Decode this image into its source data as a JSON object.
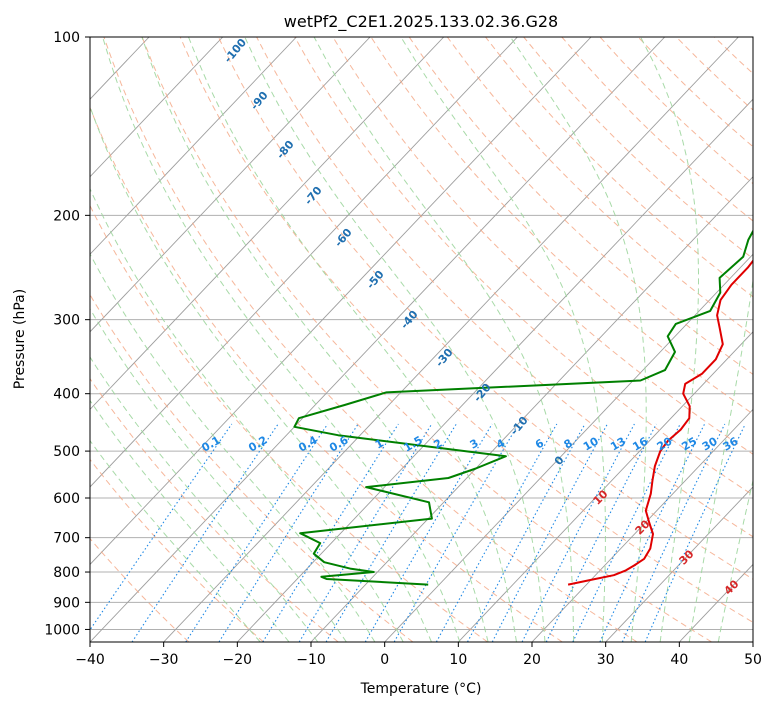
{
  "chart_data": {
    "type": "line",
    "subtype": "skew-T log-P diagram",
    "title": "wetPf2_C2E1.2025.133.02.36.G28",
    "xlabel": "Temperature (°C)",
    "ylabel": "Pressure (hPa)",
    "xlim": [
      -40,
      50
    ],
    "ylim": [
      1050,
      100
    ],
    "y_scale": "log",
    "x_ticks": [
      -40,
      -30,
      -20,
      -10,
      0,
      10,
      20,
      30,
      40,
      50
    ],
    "y_ticks": [
      100,
      200,
      300,
      400,
      500,
      600,
      700,
      800,
      900,
      1000
    ],
    "grid": true,
    "series": [
      {
        "role": "temperature",
        "color": "#e00000",
        "points": [
          [
            17.5,
            840
          ],
          [
            20,
            825
          ],
          [
            22.5,
            810
          ],
          [
            23.5,
            795
          ],
          [
            24,
            780
          ],
          [
            24.5,
            760
          ],
          [
            24,
            730
          ],
          [
            22.5,
            690
          ],
          [
            20.5,
            660
          ],
          [
            18.5,
            630
          ],
          [
            17,
            590
          ],
          [
            15.5,
            560
          ],
          [
            14,
            530
          ],
          [
            12.8,
            500
          ],
          [
            12.5,
            480
          ],
          [
            12.8,
            460
          ],
          [
            12.5,
            440
          ],
          [
            11,
            420
          ],
          [
            8.5,
            400
          ],
          [
            7.5,
            385
          ],
          [
            8.5,
            370
          ],
          [
            8.5,
            350
          ],
          [
            7.5,
            330
          ],
          [
            5,
            310
          ],
          [
            3,
            295
          ],
          [
            1.5,
            278
          ],
          [
            1,
            262
          ],
          [
            1,
            245
          ],
          [
            0.5,
            225
          ],
          [
            -1.5,
            205
          ],
          [
            -3.5,
            190
          ],
          [
            -5,
            175
          ],
          [
            -6.5,
            162
          ],
          [
            -7,
            150
          ],
          [
            -6.5,
            138
          ],
          [
            -5.5,
            128
          ],
          [
            -4.5,
            118
          ],
          [
            -2.5,
            108
          ],
          [
            -1.3,
            100
          ]
        ]
      },
      {
        "role": "dewpoint",
        "color": "#008000",
        "points": [
          [
            -1.5,
            840
          ],
          [
            -16,
            822
          ],
          [
            -17,
            815
          ],
          [
            -10.5,
            800
          ],
          [
            -14,
            790
          ],
          [
            -18.5,
            770
          ],
          [
            -21,
            745
          ],
          [
            -21.5,
            715
          ],
          [
            -25.5,
            688
          ],
          [
            -9.5,
            650
          ],
          [
            -12,
            610
          ],
          [
            -22.5,
            575
          ],
          [
            -12.5,
            555
          ],
          [
            -10,
            535
          ],
          [
            -7.5,
            510
          ],
          [
            -33,
            470
          ],
          [
            -40,
            455
          ],
          [
            -40.5,
            440
          ],
          [
            -36,
            418
          ],
          [
            -32,
            398
          ],
          [
            1,
            380
          ],
          [
            3,
            365
          ],
          [
            2,
            340
          ],
          [
            -1,
            320
          ],
          [
            -1.5,
            305
          ],
          [
            1.5,
            290
          ],
          [
            0.5,
            270
          ],
          [
            -1.5,
            255
          ],
          [
            -1,
            235
          ],
          [
            -2.5,
            220
          ],
          [
            -3.5,
            205
          ],
          [
            -5.5,
            190
          ],
          [
            -7,
            175
          ],
          [
            -7,
            158
          ],
          [
            -6,
            142
          ],
          [
            -4.5,
            130
          ],
          [
            -4.5,
            120
          ],
          [
            -4.5,
            110
          ],
          [
            -3.5,
            100
          ]
        ]
      }
    ],
    "reference_lines": {
      "dry_adiabat_labels": [
        "-100",
        "-90",
        "-80",
        "-70",
        "-60",
        "-50",
        "-40",
        "-30",
        "-20",
        "-10",
        "0"
      ],
      "mixing_ratio_labels": [
        "0.1",
        "0.2",
        "0.4",
        "0.6",
        "1",
        "1.5",
        "2",
        "3",
        "4",
        "6",
        "8",
        "10",
        "13",
        "16",
        "20",
        "25",
        "30",
        "36"
      ],
      "moist_adiabat_labels": [
        "10",
        "20",
        "30",
        "40"
      ]
    }
  },
  "colors": {
    "temperature": "#e00000",
    "dewpoint": "#008000",
    "isotherm": "#9e9e9e",
    "dry_adiabat": "#f4a582",
    "moist_adiabat": "#9fd69f",
    "mixing_ratio": "#1e88e5",
    "label_dry": "#1f6fb0",
    "label_moist": "#d62728"
  }
}
